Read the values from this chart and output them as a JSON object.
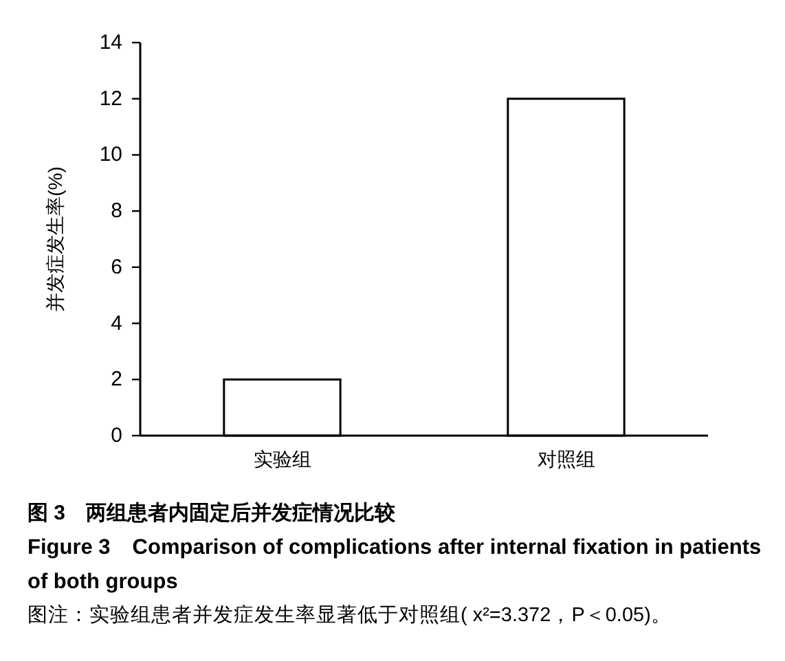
{
  "chart_data": {
    "type": "bar",
    "title": "图 3　两组患者内固定后并发症情况比较",
    "subtitle": "Figure 3　Comparison of complications after internal fixation in patients of both groups",
    "annotations": [
      "图注：实验组患者并发症发生率显著低于对照组( x²=3.372，P＜0.05)。"
    ],
    "ylabel": "并发症发生率(%)",
    "categories": [
      "实验组",
      "对照组"
    ],
    "values": [
      2,
      12
    ],
    "color": "#ffffff",
    "ylim": [
      0,
      14
    ],
    "yticks": [
      0,
      2,
      4,
      6,
      8,
      10,
      12,
      14
    ],
    "grid": false
  }
}
